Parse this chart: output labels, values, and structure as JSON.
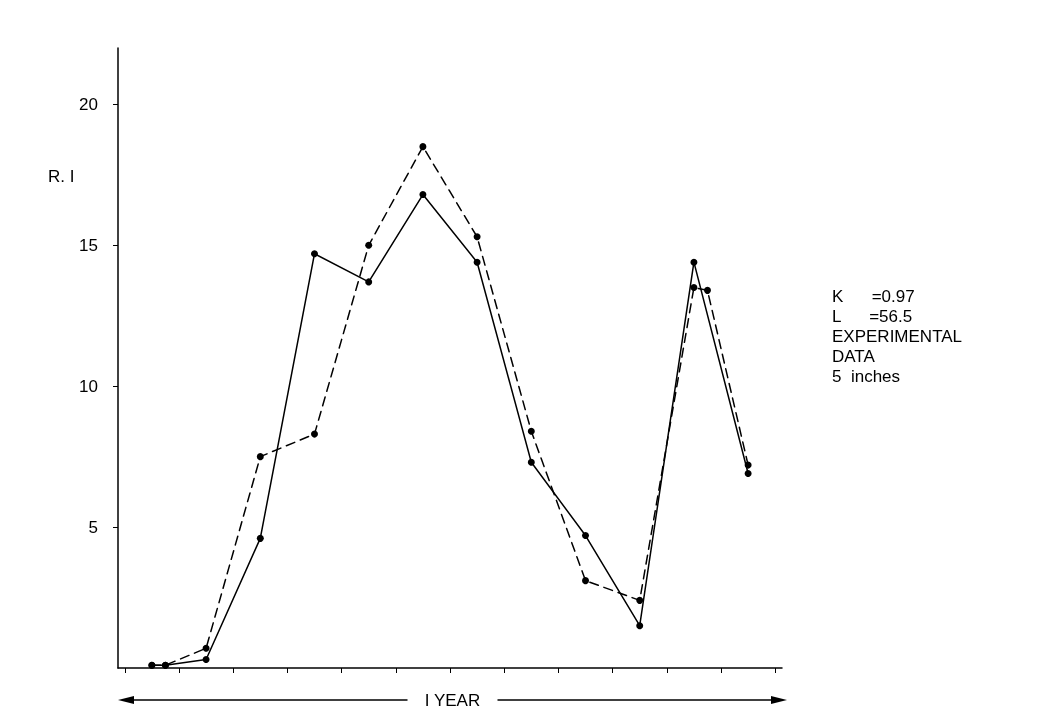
{
  "chart_data": {
    "type": "line",
    "ylabel": "R. I",
    "xlabel": "I YEAR",
    "categories": [
      null,
      null,
      null,
      null,
      null,
      null,
      null,
      null,
      null,
      null,
      null,
      null,
      null,
      null,
      null,
      null,
      null,
      null,
      null,
      null,
      null,
      null,
      null,
      null,
      null,
      null,
      null,
      null,
      null,
      null,
      null,
      null,
      null,
      null,
      null,
      null,
      null,
      null,
      null,
      null,
      null,
      null,
      null,
      null,
      null,
      null,
      null,
      null,
      null
    ],
    "ylim": [
      0,
      22
    ],
    "yticks": [
      5,
      10,
      15,
      20
    ],
    "tick_labels": "y",
    "marker": "circle",
    "series": [
      {
        "color": "#000000",
        "line_style": "solid",
        "values": [
          null,
          null,
          0.1,
          0.1,
          null,
          null,
          0.3,
          null,
          null,
          null,
          4.6,
          null,
          null,
          null,
          14.7,
          null,
          null,
          null,
          13.7,
          null,
          null,
          null,
          16.8,
          null,
          null,
          null,
          14.4,
          null,
          null,
          null,
          7.3,
          null,
          null,
          null,
          4.7,
          null,
          null,
          null,
          1.5,
          null,
          null,
          null,
          14.4,
          null,
          null,
          null,
          6.9,
          null,
          null
        ]
      },
      {
        "color": "#000000",
        "line_style": "dashed",
        "values": [
          null,
          null,
          0.1,
          0.1,
          null,
          null,
          0.7,
          null,
          null,
          null,
          7.5,
          null,
          null,
          null,
          8.3,
          null,
          null,
          null,
          15.0,
          null,
          null,
          null,
          18.5,
          null,
          null,
          null,
          15.3,
          null,
          null,
          null,
          8.4,
          null,
          null,
          null,
          3.1,
          null,
          null,
          null,
          2.4,
          null,
          null,
          null,
          13.5,
          13.4,
          null,
          null,
          7.2,
          null,
          null
        ]
      }
    ],
    "annotations": [
      "K      =0.97",
      "L      =56.5",
      "EXPERIMENTAL",
      "DATA",
      "5  inches"
    ]
  }
}
